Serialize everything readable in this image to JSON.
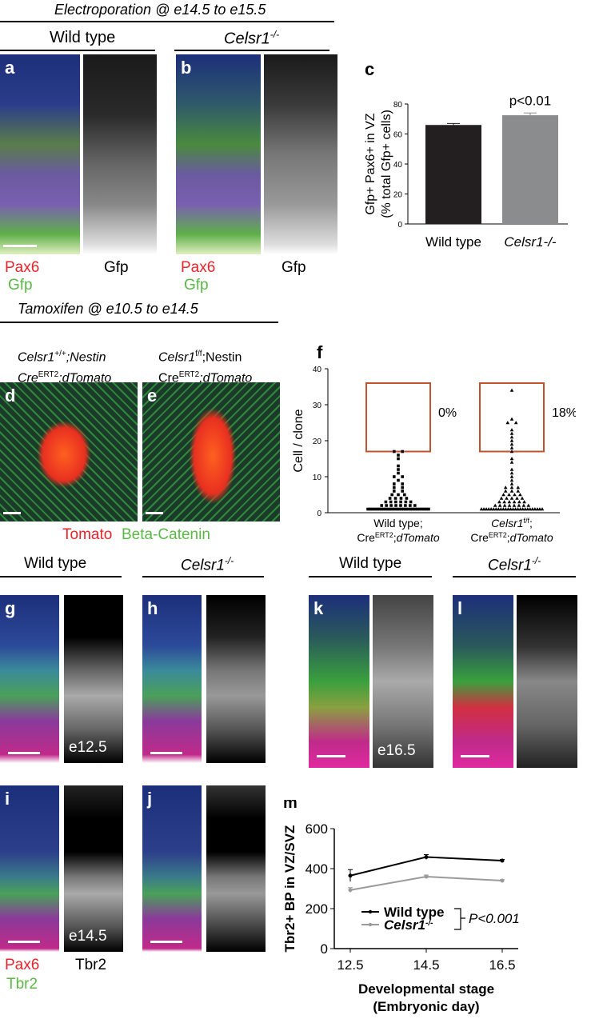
{
  "header1": "Electroporation @ e14.5 to e15.5",
  "header2": "Tamoxifen @ e10.5 to e14.5",
  "top": {
    "wt": "Wild type",
    "ko": "Celsr1",
    "ko_sup": "-/-",
    "label_a": "a",
    "label_b": "b",
    "pax6": "Pax6",
    "gfp_merge": "Gfp",
    "gfp": "Gfp"
  },
  "mid": {
    "d_title_l1": "Celsr1",
    "d_title_l1_sup": "+/+",
    "d_title_l1_rest": ";Nestin",
    "d_title_l2": "Cre",
    "d_title_l2_sup": "ERT2",
    "d_title_l2_rest": ";dTomato",
    "e_title_l1": "Celsr1",
    "e_title_l1_sup": "f/f",
    "e_title_l1_rest": ";Nestin",
    "e_title_l2": "Cre",
    "e_title_l2_sup": "ERT2",
    "e_title_l2_rest": ";dTomato",
    "label_d": "d",
    "label_e": "e",
    "tomato": "Tomato",
    "beta": "Beta-Catenin"
  },
  "bottom": {
    "wt1": "Wild type",
    "ko1": "Celsr1",
    "ko1_sup": "-/-",
    "wt2": "Wild type",
    "ko2": "Celsr1",
    "ko2_sup": "-/-",
    "label_g": "g",
    "label_h": "h",
    "label_i": "i",
    "label_j": "j",
    "label_k": "k",
    "label_l": "l",
    "e125": "e12.5",
    "e145": "e14.5",
    "e165": "e16.5",
    "pax6": "Pax6",
    "tbr2_merge": "Tbr2",
    "tbr2": "Tbr2"
  },
  "chart_data": [
    {
      "panel": "c",
      "type": "bar",
      "categories": [
        "Wild type",
        "Celsr1-/-"
      ],
      "values": [
        66,
        72.5
      ],
      "errors": [
        1,
        1.5
      ],
      "colors": [
        "#231f20",
        "#8a8c8e"
      ],
      "ylabel_l1": "Gfp+ Pax6+ in VZ",
      "ylabel_l2": "(% total Gfp+ cells)",
      "ylim": [
        0,
        80
      ],
      "yticks": [
        0,
        20,
        40,
        60,
        80
      ],
      "annotation": "p<0.01"
    },
    {
      "panel": "f",
      "type": "scatter",
      "categories": [
        "Wild type; CreERT2;dTomato",
        "Celsr1f/f; CreERT2;dTomato"
      ],
      "ylabel": "Cell / clone",
      "ylim": [
        0,
        40
      ],
      "yticks": [
        0,
        10,
        20,
        30,
        40
      ],
      "percent_labels": [
        "0%",
        "18%"
      ],
      "box_range": [
        17,
        36
      ],
      "wt_points": [
        1,
        1,
        1,
        1,
        1,
        1,
        1,
        1,
        1,
        1,
        1,
        1,
        1,
        1,
        1,
        1,
        1,
        1,
        1,
        1,
        1,
        1,
        1,
        1,
        1,
        1,
        1,
        1,
        2,
        2,
        2,
        2,
        2,
        2,
        2,
        2,
        3,
        3,
        3,
        3,
        3,
        3,
        4,
        4,
        4,
        4,
        5,
        5,
        5,
        6,
        6,
        7,
        7,
        8,
        8,
        9,
        10,
        10,
        11,
        12,
        13,
        15,
        16,
        17,
        17
      ],
      "ko_points": [
        1,
        1,
        1,
        1,
        1,
        1,
        1,
        1,
        1,
        1,
        1,
        1,
        1,
        1,
        1,
        1,
        1,
        1,
        1,
        1,
        1,
        1,
        1,
        1,
        1,
        1,
        2,
        2,
        2,
        2,
        2,
        2,
        2,
        2,
        3,
        3,
        3,
        3,
        3,
        3,
        4,
        4,
        4,
        4,
        4,
        5,
        5,
        5,
        5,
        6,
        6,
        6,
        7,
        7,
        7,
        8,
        9,
        10,
        11,
        12,
        14,
        15,
        17,
        18,
        19,
        20,
        21,
        22,
        23,
        25,
        25,
        26,
        34
      ]
    },
    {
      "panel": "m",
      "type": "line",
      "x": [
        12.5,
        14.5,
        16.5
      ],
      "series": [
        {
          "name": "Wild type",
          "values": [
            365,
            458,
            440
          ],
          "errors": [
            30,
            12,
            6
          ],
          "color": "#000000"
        },
        {
          "name": "Celsr1-/-",
          "values": [
            293,
            360,
            340
          ],
          "errors": [
            12,
            8,
            5
          ],
          "color": "#9a9a9a"
        }
      ],
      "ylabel": "Tbr2+ BP in VZ/SVZ",
      "xlabel_l1": "Developmental stage",
      "xlabel_l2": "(Embryonic day)",
      "ylim": [
        0,
        600
      ],
      "yticks": [
        0,
        200,
        400,
        600
      ],
      "xticks": [
        "12.5",
        "14.5",
        "16.5"
      ],
      "annotation": "P<0.001",
      "label": "m"
    }
  ],
  "labels": {
    "c": "c",
    "f": "f"
  }
}
